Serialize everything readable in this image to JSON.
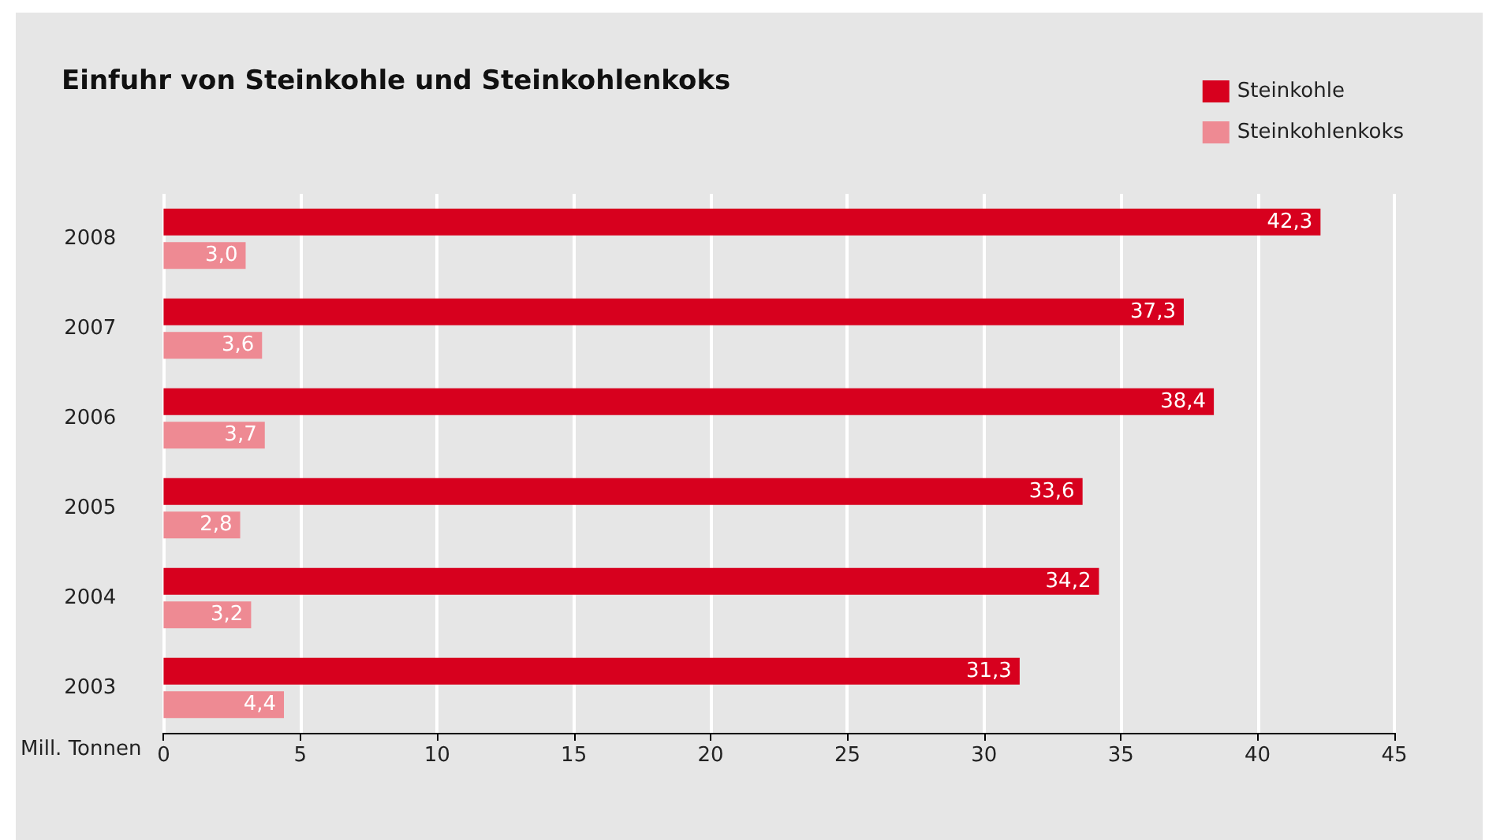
{
  "chart_data": {
    "type": "bar",
    "orientation": "horizontal",
    "title": "Einfuhr von Steinkohle und Steinkohlenkoks",
    "xlabel": "Mill. Tonnen",
    "categories": [
      "2008",
      "2007",
      "2006",
      "2005",
      "2004",
      "2003"
    ],
    "series": [
      {
        "name": "Steinkohle",
        "color": "#d7001e",
        "values": [
          42.3,
          37.3,
          38.4,
          33.6,
          34.2,
          31.3
        ],
        "value_labels": [
          "42,3",
          "37,3",
          "38,4",
          "33,6",
          "34,2",
          "31,3"
        ]
      },
      {
        "name": "Steinkohlenkoks",
        "color": "#ee8a93",
        "values": [
          3.0,
          3.6,
          3.7,
          2.8,
          3.2,
          4.4
        ],
        "value_labels": [
          "3,0",
          "3,6",
          "3,7",
          "2,8",
          "3,2",
          "4,4"
        ]
      }
    ],
    "xlim": [
      0,
      45
    ],
    "xticks": [
      0,
      5,
      10,
      15,
      20,
      25,
      30,
      35,
      40,
      45
    ],
    "grid": "x",
    "legend": "top right"
  }
}
